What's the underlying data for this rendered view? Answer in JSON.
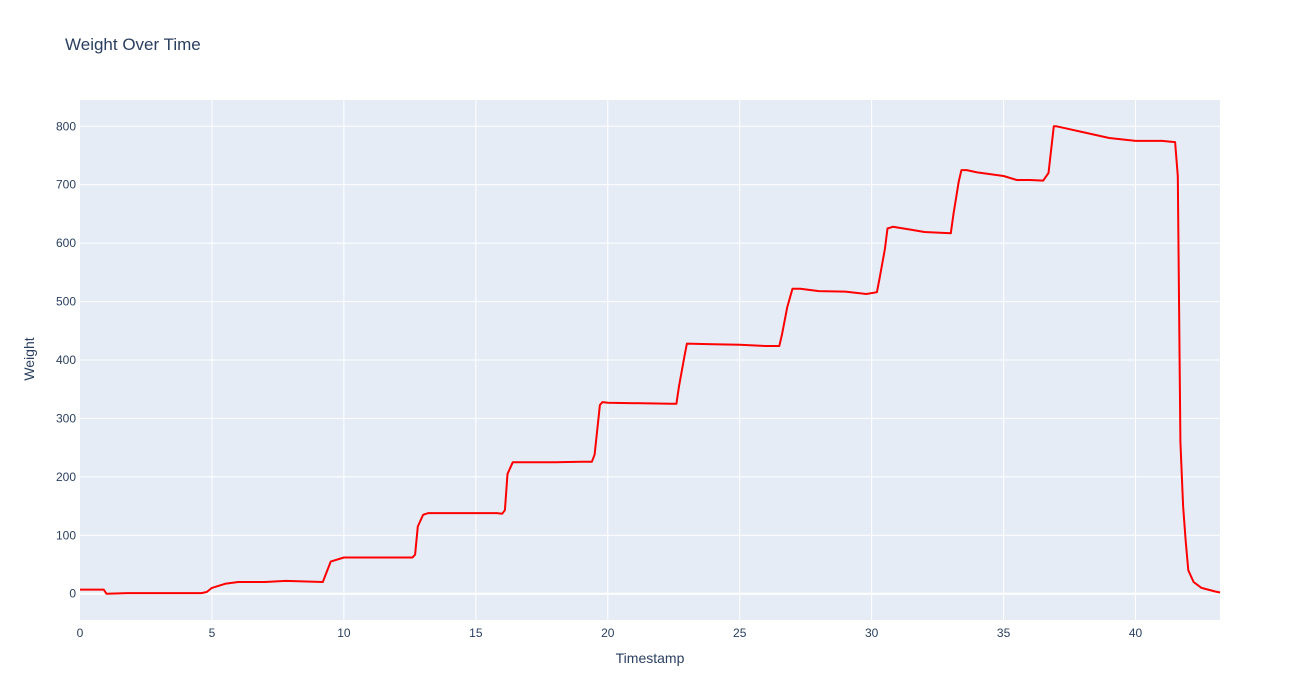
{
  "chart_data": {
    "type": "line",
    "title": "Weight Over Time",
    "xlabel": "Timestamp",
    "ylabel": "Weight",
    "xlim": [
      0,
      43.2
    ],
    "ylim": [
      -45,
      845
    ],
    "x_ticks": [
      0,
      5,
      10,
      15,
      20,
      25,
      30,
      35,
      40
    ],
    "y_ticks": [
      0,
      100,
      200,
      300,
      400,
      500,
      600,
      700,
      800
    ],
    "grid": true,
    "legend": "none",
    "colors": {
      "plot_bg": "#e5ecf6",
      "grid": "#ffffff",
      "line": "#ff0000",
      "text": "#2a3f5f"
    },
    "series": [
      {
        "x": [
          0,
          0.9,
          1.0,
          1.8,
          3.2,
          4.6,
          4.8,
          5.0,
          5.5,
          6.0,
          7.0,
          7.8,
          9.2,
          9.5,
          10.0,
          12.6,
          12.7,
          12.8,
          13.0,
          13.2,
          15.8,
          16.0,
          16.1,
          16.2,
          16.4,
          17.0,
          18.0,
          19.0,
          19.4,
          19.5,
          19.7,
          19.8,
          20.0,
          22.4,
          22.6,
          22.7,
          22.9,
          23.0,
          24.0,
          25.0,
          26.0,
          26.5,
          26.6,
          26.8,
          27.0,
          27.3,
          28.0,
          29.0,
          29.8,
          30.2,
          30.3,
          30.5,
          30.6,
          30.8,
          31.5,
          32.0,
          33.0,
          33.1,
          33.3,
          33.4,
          33.6,
          34.0,
          35.0,
          35.5,
          36.0,
          36.5,
          36.7,
          36.9,
          37.0,
          37.5,
          38.0,
          39.0,
          40.0,
          40.5,
          41.0,
          41.5,
          41.6,
          41.7,
          41.8,
          41.9,
          42.0,
          42.2,
          42.5,
          43.0,
          43.2
        ],
        "y": [
          7,
          7,
          0,
          1,
          1,
          1,
          3,
          10,
          17,
          20,
          20,
          22,
          20,
          55,
          62,
          62,
          67,
          115,
          135,
          138,
          138,
          137,
          143,
          205,
          225,
          225,
          225,
          226,
          226,
          238,
          323,
          328,
          327,
          325,
          325,
          355,
          405,
          428,
          427,
          426,
          424,
          424,
          443,
          490,
          522,
          522,
          518,
          517,
          513,
          516,
          540,
          590,
          625,
          628,
          623,
          619,
          617,
          650,
          705,
          725,
          725,
          721,
          715,
          708,
          708,
          707,
          720,
          800,
          800,
          795,
          790,
          780,
          775,
          775,
          775,
          773,
          715,
          260,
          150,
          90,
          40,
          20,
          10,
          4,
          2
        ]
      }
    ]
  }
}
